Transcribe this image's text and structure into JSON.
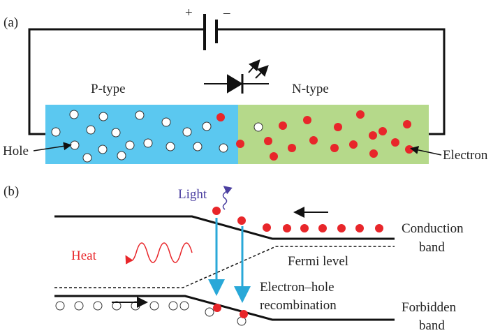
{
  "panel_a": {
    "label": "(a)",
    "battery": {
      "positive": "+",
      "negative": "–"
    },
    "p_region": "P-type",
    "n_region": "N-type",
    "hole_label": "Hole",
    "electron_label": "Electron"
  },
  "panel_b": {
    "label": "(b)",
    "light": "Light",
    "heat": "Heat",
    "conduction_band": [
      "Conduction",
      "band"
    ],
    "fermi_level": "Fermi level",
    "recombination": [
      "Electron–hole",
      "recombination"
    ],
    "forbidden_band": [
      "Forbidden",
      "band"
    ]
  }
}
